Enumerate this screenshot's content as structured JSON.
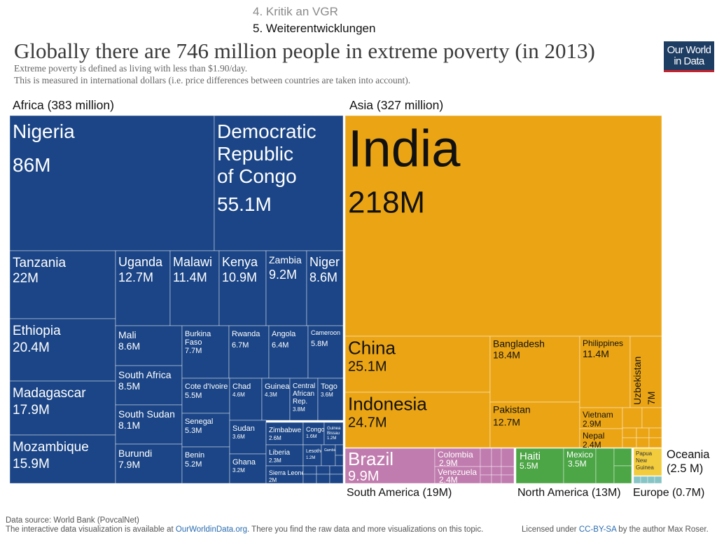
{
  "nav": {
    "item4": "4. Kritik an VGR",
    "item5": "5. Weiterentwicklungen"
  },
  "header": {
    "title": "Globally there are 746 million people in extreme poverty (in 2013)",
    "subtitle1": "Extreme poverty is defined as living with less than $1.90/day.",
    "subtitle2": "This is measured in international dollars (i.e. price differences between countries are taken into account)."
  },
  "logo": {
    "line1": "Our World",
    "line2": "in Data",
    "colors": {
      "bg": "#1d3d63",
      "stripe": "#c8222c"
    }
  },
  "regions": {
    "africa": "Africa (383 million)",
    "asia": "Asia (327 million)",
    "oceania_line1": "Oceania",
    "oceania_line2": "(2.5 M)",
    "south_america": "South America (19M)",
    "north_america": "North America (13M)",
    "europe": "Europe (0.7M)"
  },
  "colors": {
    "africa": "#1b4586",
    "asia": "#eba514",
    "south_america": "#c07cae",
    "north_america": "#4ca646",
    "oceania": "#f2cc3d",
    "europe": "#86c4c6"
  },
  "footer": {
    "source": "Data source: World Bank (PovcalNet)",
    "interactive_pre": "The interactive data visualization is available at ",
    "interactive_link": "OurWorldinData.org",
    "interactive_post": ". There you find the raw data and more visualizations on this topic.",
    "license_pre": "Licensed under ",
    "license_link": "CC-BY-SA",
    "license_post": " by the author Max Roser."
  },
  "chart_data": {
    "type": "treemap",
    "unit": "million people",
    "regions": [
      {
        "region": "Africa",
        "total": 383,
        "items": [
          {
            "name": "Nigeria",
            "value": 86,
            "label": "86M"
          },
          {
            "name": "Democratic Republic of Congo",
            "value": 55.1,
            "label": "55.1M"
          },
          {
            "name": "Tanzania",
            "value": 22,
            "label": "22M"
          },
          {
            "name": "Ethiopia",
            "value": 20.4,
            "label": "20.4M"
          },
          {
            "name": "Madagascar",
            "value": 17.9,
            "label": "17.9M"
          },
          {
            "name": "Mozambique",
            "value": 15.9,
            "label": "15.9M"
          },
          {
            "name": "Uganda",
            "value": 12.7,
            "label": "12.7M"
          },
          {
            "name": "Malawi",
            "value": 11.4,
            "label": "11.4M"
          },
          {
            "name": "Kenya",
            "value": 10.9,
            "label": "10.9M"
          },
          {
            "name": "Zambia",
            "value": 9.2,
            "label": "9.2M"
          },
          {
            "name": "Niger",
            "value": 8.6,
            "label": "8.6M"
          },
          {
            "name": "Mali",
            "value": 8.6,
            "label": "8.6M"
          },
          {
            "name": "South Africa",
            "value": 8.5,
            "label": "8.5M"
          },
          {
            "name": "South Sudan",
            "value": 8.1,
            "label": "8.1M"
          },
          {
            "name": "Burundi",
            "value": 7.9,
            "label": "7.9M"
          },
          {
            "name": "Burkina Faso",
            "value": 7.7,
            "label": "7.7M"
          },
          {
            "name": "Rwanda",
            "value": 6.7,
            "label": "6.7M"
          },
          {
            "name": "Angola",
            "value": 6.4,
            "label": "6.4M"
          },
          {
            "name": "Cameroon",
            "value": 5.8,
            "label": "5.8M"
          },
          {
            "name": "Cote d'Ivoire",
            "value": 5.5,
            "label": "5.5M"
          },
          {
            "name": "Senegal",
            "value": 5.3,
            "label": "5.3M"
          },
          {
            "name": "Benin",
            "value": 5.2,
            "label": "5.2M"
          },
          {
            "name": "Chad",
            "value": 4.6,
            "label": "4.6M"
          },
          {
            "name": "Guinea",
            "value": 4.3,
            "label": "4.3M"
          },
          {
            "name": "Central African Rep.",
            "value": 3.8,
            "label": "3.8M"
          },
          {
            "name": "Togo",
            "value": 3.6,
            "label": "3.6M"
          },
          {
            "name": "Sudan",
            "value": 3.6,
            "label": "3.6M"
          },
          {
            "name": "Ghana",
            "value": 3.2,
            "label": "3.2M"
          },
          {
            "name": "Zimbabwe",
            "value": 2.6,
            "label": "2.6M"
          },
          {
            "name": "Congo",
            "value": 1.6,
            "label": "1.6M"
          },
          {
            "name": "Guinea Bissau",
            "value": 1.2,
            "label": "1.2M"
          },
          {
            "name": "Liberia",
            "value": 2.3,
            "label": "2.3M"
          },
          {
            "name": "Lesotho",
            "value": 1.2,
            "label": "1.2M"
          },
          {
            "name": "Gambia",
            "value": null,
            "label": ""
          },
          {
            "name": "Sierra Leone",
            "value": 2,
            "label": "2M"
          }
        ]
      },
      {
        "region": "Asia",
        "total": 327,
        "items": [
          {
            "name": "India",
            "value": 218,
            "label": "218M"
          },
          {
            "name": "China",
            "value": 25.1,
            "label": "25.1M"
          },
          {
            "name": "Indonesia",
            "value": 24.7,
            "label": "24.7M"
          },
          {
            "name": "Bangladesh",
            "value": 18.4,
            "label": "18.4M"
          },
          {
            "name": "Pakistan",
            "value": 12.7,
            "label": "12.7M"
          },
          {
            "name": "Philippines",
            "value": 11.4,
            "label": "11.4M"
          },
          {
            "name": "Uzbekistan",
            "value": 7,
            "label": "7M"
          },
          {
            "name": "Vietnam",
            "value": 2.9,
            "label": "2.9M"
          },
          {
            "name": "Nepal",
            "value": 2.4,
            "label": "2.4M"
          }
        ]
      },
      {
        "region": "South America",
        "total": 19,
        "items": [
          {
            "name": "Brazil",
            "value": 9.9,
            "label": "9.9M"
          },
          {
            "name": "Colombia",
            "value": 2.9,
            "label": "2.9M"
          },
          {
            "name": "Venezuela",
            "value": 2.4,
            "label": "2.4M"
          }
        ]
      },
      {
        "region": "North America",
        "total": 13,
        "items": [
          {
            "name": "Haiti",
            "value": 5.5,
            "label": "5.5M"
          },
          {
            "name": "Mexico",
            "value": 3.5,
            "label": "3.5M"
          }
        ]
      },
      {
        "region": "Oceania",
        "total": 2.5,
        "items": [
          {
            "name": "Papua New Guinea",
            "value": null,
            "label": ""
          }
        ]
      },
      {
        "region": "Europe",
        "total": 0.7,
        "items": []
      }
    ]
  }
}
